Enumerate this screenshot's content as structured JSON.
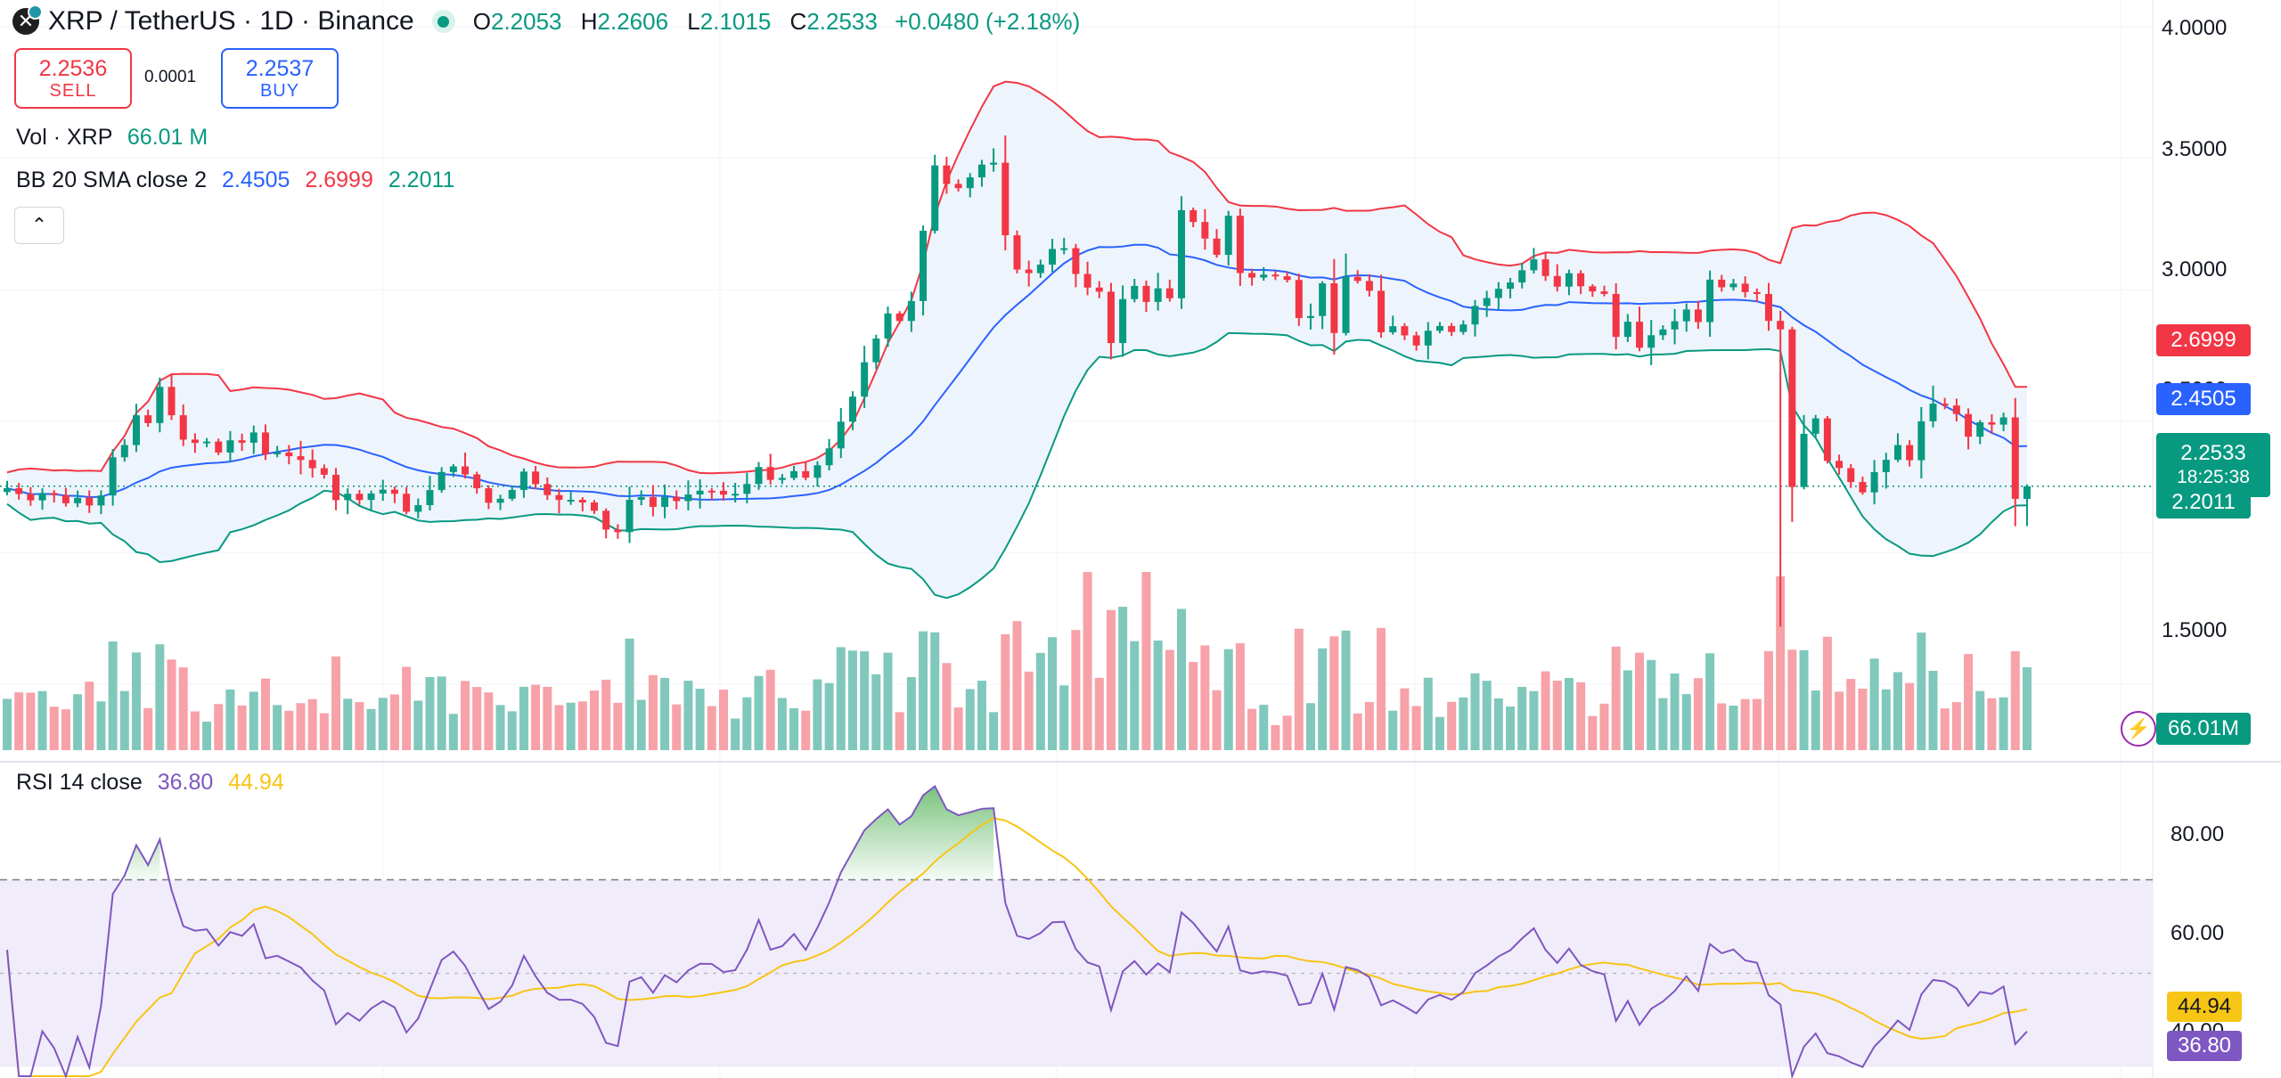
{
  "header": {
    "symbol_title": "XRP / TetherUS · 1D · Binance",
    "open_key": "O",
    "open": "2.2053",
    "high_key": "H",
    "high": "2.2606",
    "low_key": "L",
    "low": "2.1015",
    "close_key": "C",
    "close": "2.2533",
    "change": "+0.0480 (+2.18%)"
  },
  "trade": {
    "sell_price": "2.2536",
    "sell_label": "SELL",
    "spread": "0.0001",
    "buy_price": "2.2537",
    "buy_label": "BUY"
  },
  "volume_legend": {
    "label": "Vol · XRP",
    "value": "66.01 M"
  },
  "bb_legend": {
    "label": "BB 20 SMA close 2",
    "basis": "2.4505",
    "upper": "2.6999",
    "lower": "2.2011"
  },
  "rsi_legend": {
    "label": "RSI 14 close",
    "rsi": "36.80",
    "ma": "44.94"
  },
  "collapse_icon": "chevron-up-icon",
  "price_axis_labels": [
    "4.0000",
    "3.5000",
    "3.0000",
    "2.5000",
    "1.5000"
  ],
  "rsi_axis_labels": [
    "80.00",
    "60.00",
    "40.00"
  ],
  "badges": {
    "upper": "2.6999",
    "basis": "2.4505",
    "last": "2.2533",
    "countdown": "18:25:38",
    "lower": "2.2011",
    "volume": "66.01M",
    "rsi_ma": "44.94",
    "rsi": "36.80"
  },
  "colors": {
    "up": "#089981",
    "down": "#f23645",
    "basis": "#2962ff",
    "upper_band": "#f23645",
    "lower_band": "#089981",
    "band_fill": "#eef4fb",
    "rsi_line": "#7e57c2",
    "rsi_ma": "#f7c515",
    "rsi_fill": "#f1ecf9",
    "vol_up": "#80c8bc",
    "vol_down": "#f7a1a8"
  },
  "chart_data": {
    "type": "candlestick",
    "close": [
      2.2458,
      2.2237,
      2.1995,
      2.2274,
      2.2196,
      2.1886,
      2.2094,
      2.1802,
      2.2181,
      2.3633,
      2.4098,
      2.5229,
      2.4934,
      2.6309,
      2.5231,
      2.4305,
      2.4179,
      2.4231,
      2.3814,
      2.4279,
      2.4187,
      2.4577,
      2.3743,
      2.3816,
      2.3674,
      2.3532,
      2.3218,
      2.2969,
      2.2004,
      2.2245,
      2.2012,
      2.2256,
      2.2403,
      2.2246,
      2.1562,
      2.1814,
      2.2387,
      2.3072,
      2.3287,
      2.2981,
      2.2455,
      2.1904,
      2.2057,
      2.2391,
      2.3089,
      2.2614,
      2.2197,
      2.2013,
      2.2016,
      2.1915,
      2.1601,
      2.0885,
      2.0787,
      2.2018,
      2.2121,
      2.1748,
      2.2131,
      2.1966,
      2.2219,
      2.2362,
      2.2359,
      2.2211,
      2.2245,
      2.2617,
      2.3264,
      2.2774,
      2.2849,
      2.3106,
      2.2856,
      2.3329,
      2.3972,
      2.4986,
      2.5939,
      2.7245,
      2.8148,
      2.9101,
      2.8814,
      2.9573,
      3.2245,
      3.4726,
      3.4024,
      3.3863,
      3.4272,
      3.4759,
      3.4832,
      3.2071,
      3.0769,
      3.0633,
      3.0957,
      3.1551,
      3.1581,
      3.0602,
      3.0084,
      2.9928,
      2.7976,
      2.9646,
      3.0147,
      2.9539,
      3.0056,
      2.9678,
      3.3026,
      3.2577,
      3.1947,
      3.1328,
      3.2813,
      3.0637,
      3.0464,
      3.0577,
      3.0513,
      3.0374,
      2.8927,
      2.9004,
      3.0247,
      2.8357,
      3.0492,
      3.0335,
      2.9962,
      2.8385,
      2.8616,
      2.8266,
      2.7882,
      2.8442,
      2.8623,
      2.8398,
      2.8681,
      2.9386,
      2.9686,
      3.0039,
      3.0278,
      3.0741,
      3.1156,
      3.0525,
      3.0121,
      3.0628,
      3.0133,
      2.9939,
      2.9843,
      2.8211,
      2.8786,
      2.7798,
      2.8273,
      2.8492,
      2.8802,
      2.9251,
      2.8772,
      3.0385,
      3.0096,
      3.0234,
      2.9911,
      2.9841,
      2.8818,
      2.8496,
      2.2503,
      2.4526,
      2.5112,
      2.3497,
      2.3222,
      2.2691,
      2.2299,
      2.3069,
      2.3537,
      2.4097,
      2.3521,
      2.5001,
      2.5672,
      2.5602,
      2.5276,
      2.4414,
      2.4965,
      2.4875,
      2.5149,
      2.2053,
      2.2533
    ],
    "open_first": 2.2312,
    "high_low_note": "wicks approximated from chart",
    "volume_last": "66.01M",
    "bb_upper_last": 2.6999,
    "bb_basis_last": 2.4505,
    "bb_lower_last": 2.2011,
    "rsi_last": 36.8,
    "rsi_ma_last": 44.94,
    "price_ylim": [
      1.25,
      4.0
    ],
    "rsi_ylim": [
      34,
      90
    ],
    "rsi_levels": [
      70,
      50
    ]
  }
}
